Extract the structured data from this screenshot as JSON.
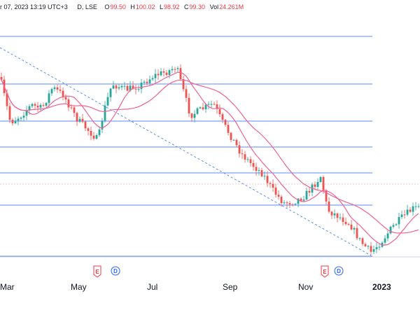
{
  "header": {
    "date_fragment": "r 07, 2023 13:19 UTC+3",
    "ticker_fragment": "D, LSE",
    "o_label": "O",
    "o_value": "99.50",
    "h_label": "H",
    "h_value": "100.02",
    "l_label": "L",
    "l_value": "98.92",
    "c_label": "C",
    "c_value": "99.30",
    "vol_label": "Vol",
    "vol_value": "24.261M"
  },
  "colors": {
    "up": "#26a69a",
    "down": "#ef5350",
    "ma": "#f06292",
    "hline": "#2962ff",
    "trendline": "#5b8def",
    "earnings": "#f23645",
    "dividend": "#2962ff"
  },
  "events": [
    {
      "type": "earnings",
      "glyph": "E",
      "month": "May"
    },
    {
      "type": "dividend",
      "glyph": "D",
      "month": "May"
    },
    {
      "type": "earnings",
      "glyph": "E",
      "month": "Nov"
    },
    {
      "type": "dividend",
      "glyph": "D",
      "month": "Nov"
    }
  ],
  "chart_data": {
    "type": "candlestick",
    "x_labels": [
      "Mar",
      "May",
      "Jul",
      "Sep",
      "Nov",
      "2023"
    ],
    "bold_x_labels": [
      "2023"
    ],
    "grid": false,
    "overlays": [
      "moving-average-fast",
      "moving-average-slow",
      "horizontal-levels",
      "descending-trendline"
    ],
    "price_path": [
      170,
      180,
      110,
      175,
      145,
      185,
      130,
      140,
      165,
      175,
      195,
      180,
      205,
      220,
      200,
      240,
      200,
      230,
      250,
      240,
      310,
      315,
      330,
      360,
      345,
      370,
      320,
      300,
      325,
      255,
      300,
      350,
      335,
      320,
      325,
      360,
      370,
      340,
      285,
      300,
      305,
      295
    ]
  }
}
